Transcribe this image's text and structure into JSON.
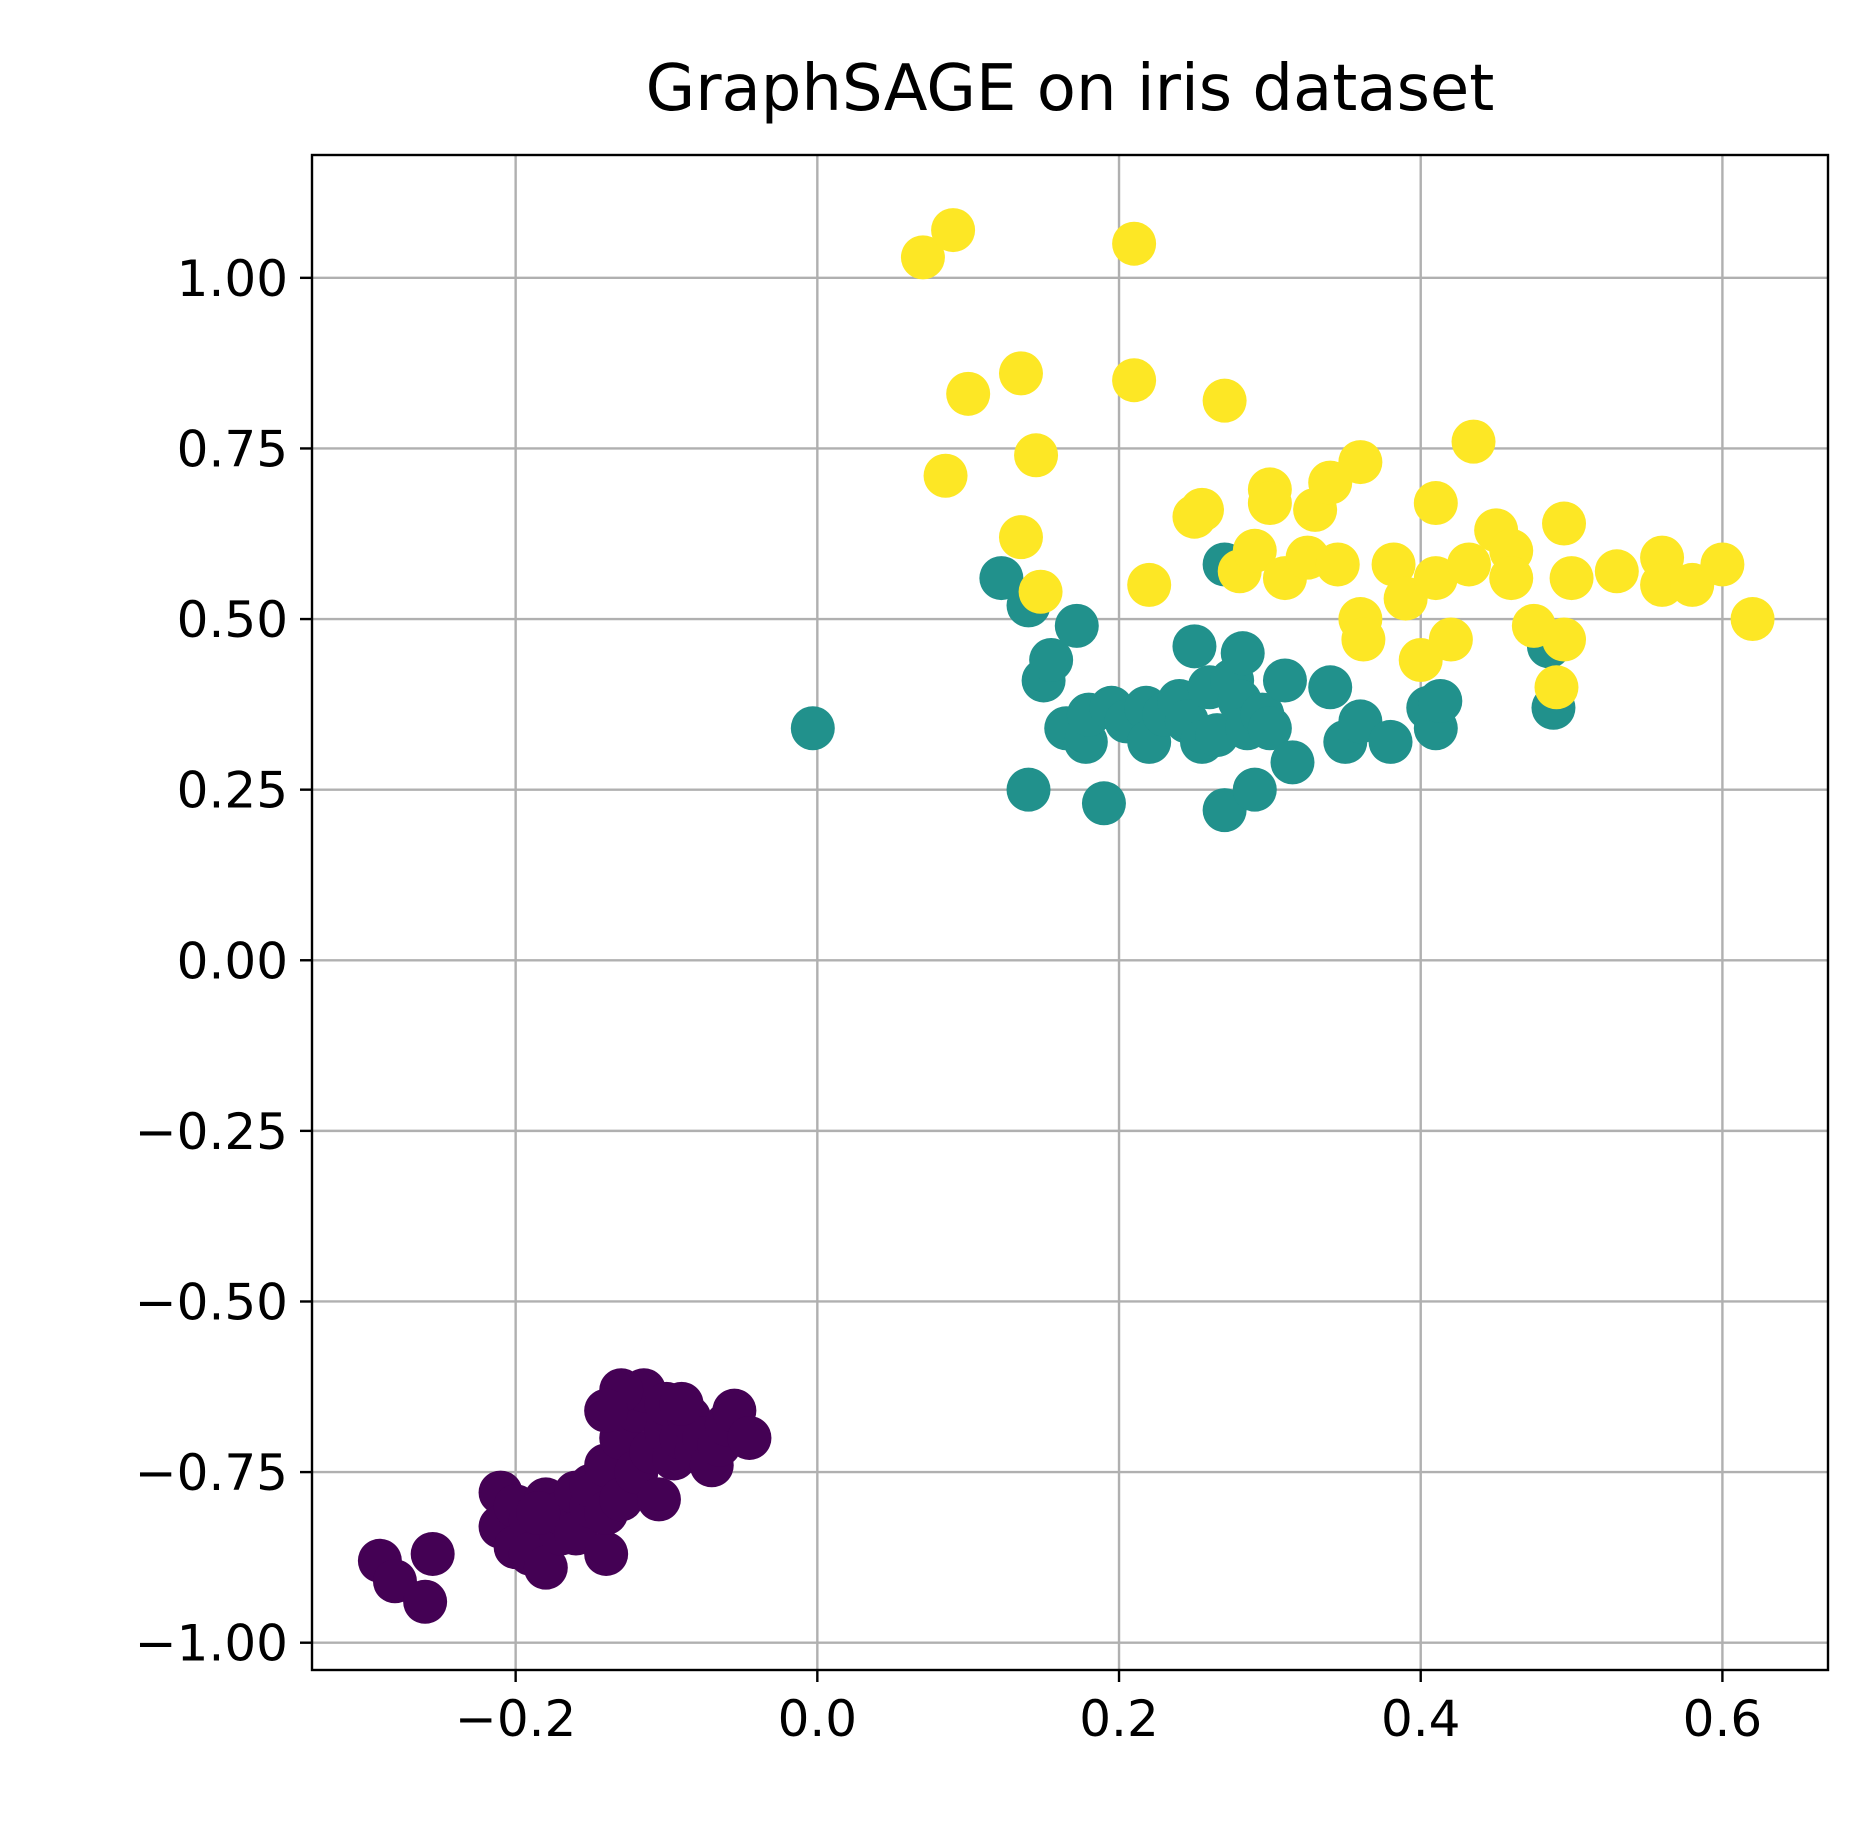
{
  "chart_data": {
    "type": "scatter",
    "title": "GraphSAGE on iris dataset",
    "xlabel": "",
    "ylabel": "",
    "xlim": [
      -0.335,
      0.67
    ],
    "ylim": [
      -1.04,
      1.18
    ],
    "grid": true,
    "legend": "none",
    "x_ticks": [
      -0.2,
      0.0,
      0.2,
      0.4,
      0.6
    ],
    "x_tick_labels": [
      "−0.2",
      "0.0",
      "0.2",
      "0.4",
      "0.6"
    ],
    "y_ticks": [
      1.0,
      0.75,
      0.5,
      0.25,
      0.0,
      -0.25,
      -0.5,
      -0.75,
      -1.0
    ],
    "y_tick_labels": [
      "1.00",
      "0.75",
      "0.50",
      "0.25",
      "0.00",
      "−0.25",
      "−0.50",
      "−0.75",
      "−1.00"
    ],
    "series": [
      {
        "color": "#440154",
        "points": [
          [
            -0.29,
            -0.88
          ],
          [
            -0.28,
            -0.91
          ],
          [
            -0.255,
            -0.87
          ],
          [
            -0.26,
            -0.94
          ],
          [
            -0.21,
            -0.78
          ],
          [
            -0.21,
            -0.83
          ],
          [
            -0.2,
            -0.8
          ],
          [
            -0.2,
            -0.86
          ],
          [
            -0.19,
            -0.82
          ],
          [
            -0.19,
            -0.87
          ],
          [
            -0.18,
            -0.89
          ],
          [
            -0.18,
            -0.79
          ],
          [
            -0.17,
            -0.84
          ],
          [
            -0.17,
            -0.81
          ],
          [
            -0.16,
            -0.78
          ],
          [
            -0.16,
            -0.84
          ],
          [
            -0.15,
            -0.8
          ],
          [
            -0.15,
            -0.77
          ],
          [
            -0.14,
            -0.87
          ],
          [
            -0.14,
            -0.81
          ],
          [
            -0.14,
            -0.74
          ],
          [
            -0.13,
            -0.79
          ],
          [
            -0.13,
            -0.7
          ],
          [
            -0.12,
            -0.75
          ],
          [
            -0.12,
            -0.66
          ],
          [
            -0.115,
            -0.63
          ],
          [
            -0.11,
            -0.72
          ],
          [
            -0.105,
            -0.79
          ],
          [
            -0.1,
            -0.69
          ],
          [
            -0.1,
            -0.65
          ],
          [
            -0.095,
            -0.73
          ],
          [
            -0.09,
            -0.7
          ],
          [
            -0.085,
            -0.67
          ],
          [
            -0.08,
            -0.72
          ],
          [
            -0.075,
            -0.7
          ],
          [
            -0.07,
            -0.74
          ],
          [
            -0.065,
            -0.71
          ],
          [
            -0.06,
            -0.68
          ],
          [
            -0.055,
            -0.66
          ],
          [
            -0.045,
            -0.7
          ],
          [
            -0.13,
            -0.63
          ],
          [
            -0.14,
            -0.66
          ],
          [
            -0.09,
            -0.65
          ],
          [
            -0.185,
            -0.81
          ]
        ]
      },
      {
        "color": "#21918c",
        "points": [
          [
            -0.003,
            0.34
          ],
          [
            0.122,
            0.56
          ],
          [
            0.14,
            0.52
          ],
          [
            0.14,
            0.25
          ],
          [
            0.15,
            0.41
          ],
          [
            0.155,
            0.44
          ],
          [
            0.165,
            0.34
          ],
          [
            0.172,
            0.49
          ],
          [
            0.178,
            0.32
          ],
          [
            0.18,
            0.36
          ],
          [
            0.19,
            0.23
          ],
          [
            0.195,
            0.37
          ],
          [
            0.205,
            0.35
          ],
          [
            0.218,
            0.37
          ],
          [
            0.22,
            0.32
          ],
          [
            0.23,
            0.36
          ],
          [
            0.24,
            0.38
          ],
          [
            0.245,
            0.35
          ],
          [
            0.25,
            0.46
          ],
          [
            0.255,
            0.32
          ],
          [
            0.26,
            0.4
          ],
          [
            0.265,
            0.33
          ],
          [
            0.27,
            0.58
          ],
          [
            0.27,
            0.22
          ],
          [
            0.275,
            0.41
          ],
          [
            0.28,
            0.38
          ],
          [
            0.282,
            0.45
          ],
          [
            0.285,
            0.34
          ],
          [
            0.29,
            0.25
          ],
          [
            0.295,
            0.36
          ],
          [
            0.3,
            0.34
          ],
          [
            0.31,
            0.41
          ],
          [
            0.315,
            0.29
          ],
          [
            0.34,
            0.4
          ],
          [
            0.35,
            0.32
          ],
          [
            0.36,
            0.35
          ],
          [
            0.38,
            0.32
          ],
          [
            0.405,
            0.37
          ],
          [
            0.41,
            0.34
          ],
          [
            0.413,
            0.38
          ],
          [
            0.485,
            0.46
          ],
          [
            0.488,
            0.37
          ]
        ]
      },
      {
        "color": "#fde725",
        "points": [
          [
            0.07,
            1.03
          ],
          [
            0.09,
            1.07
          ],
          [
            0.085,
            0.71
          ],
          [
            0.1,
            0.83
          ],
          [
            0.135,
            0.86
          ],
          [
            0.135,
            0.62
          ],
          [
            0.145,
            0.74
          ],
          [
            0.148,
            0.54
          ],
          [
            0.21,
            1.05
          ],
          [
            0.21,
            0.85
          ],
          [
            0.22,
            0.55
          ],
          [
            0.25,
            0.65
          ],
          [
            0.255,
            0.66
          ],
          [
            0.27,
            0.82
          ],
          [
            0.28,
            0.57
          ],
          [
            0.29,
            0.6
          ],
          [
            0.3,
            0.69
          ],
          [
            0.3,
            0.67
          ],
          [
            0.31,
            0.56
          ],
          [
            0.325,
            0.59
          ],
          [
            0.33,
            0.66
          ],
          [
            0.34,
            0.7
          ],
          [
            0.345,
            0.58
          ],
          [
            0.36,
            0.73
          ],
          [
            0.36,
            0.5
          ],
          [
            0.362,
            0.47
          ],
          [
            0.382,
            0.58
          ],
          [
            0.39,
            0.53
          ],
          [
            0.4,
            0.44
          ],
          [
            0.41,
            0.67
          ],
          [
            0.41,
            0.56
          ],
          [
            0.42,
            0.47
          ],
          [
            0.432,
            0.58
          ],
          [
            0.435,
            0.76
          ],
          [
            0.45,
            0.63
          ],
          [
            0.46,
            0.6
          ],
          [
            0.46,
            0.56
          ],
          [
            0.475,
            0.49
          ],
          [
            0.49,
            0.4
          ],
          [
            0.495,
            0.64
          ],
          [
            0.5,
            0.56
          ],
          [
            0.495,
            0.47
          ],
          [
            0.53,
            0.57
          ],
          [
            0.56,
            0.59
          ],
          [
            0.56,
            0.55
          ],
          [
            0.58,
            0.55
          ],
          [
            0.6,
            0.58
          ],
          [
            0.62,
            0.5
          ]
        ]
      }
    ]
  }
}
